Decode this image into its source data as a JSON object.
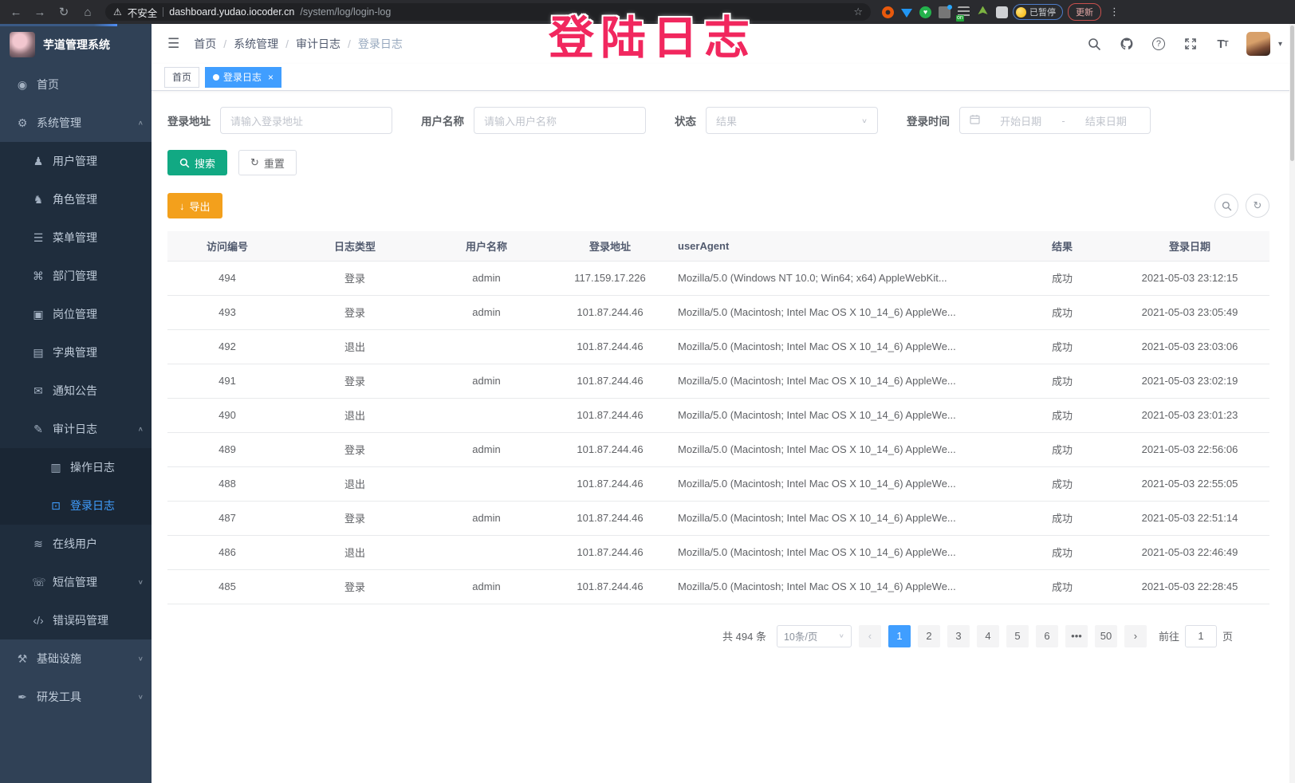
{
  "overlay": {
    "title": "登陆日志",
    "color": "#f1275e"
  },
  "browser": {
    "security_label": "不安全",
    "url_host": "dashboard.yudao.iocoder.cn",
    "url_path": "/system/log/login-log",
    "paused_badge": "已暂停",
    "update_label": "更新"
  },
  "sidebar": {
    "app_title": "芋道管理系统",
    "items": [
      {
        "label": "首页",
        "icon": "dashboard-icon",
        "level": 1,
        "arrow": ""
      },
      {
        "label": "系统管理",
        "icon": "gear-icon",
        "level": 1,
        "arrow": "expanded"
      },
      {
        "label": "用户管理",
        "icon": "user-icon",
        "level": 2,
        "arrow": ""
      },
      {
        "label": "角色管理",
        "icon": "roles-icon",
        "level": 2,
        "arrow": ""
      },
      {
        "label": "菜单管理",
        "icon": "menu-list-icon",
        "level": 2,
        "arrow": ""
      },
      {
        "label": "部门管理",
        "icon": "org-tree-icon",
        "level": 2,
        "arrow": ""
      },
      {
        "label": "岗位管理",
        "icon": "post-icon",
        "level": 2,
        "arrow": ""
      },
      {
        "label": "字典管理",
        "icon": "dict-icon",
        "level": 2,
        "arrow": ""
      },
      {
        "label": "通知公告",
        "icon": "announcement-icon",
        "level": 2,
        "arrow": ""
      },
      {
        "label": "审计日志",
        "icon": "audit-log-icon",
        "level": 2,
        "arrow": "expanded"
      },
      {
        "label": "操作日志",
        "icon": "operation-log-icon",
        "level": 3,
        "arrow": ""
      },
      {
        "label": "登录日志",
        "icon": "login-log-icon",
        "level": 3,
        "arrow": "",
        "active": true
      },
      {
        "label": "在线用户",
        "icon": "online-users-icon",
        "level": 2,
        "arrow": ""
      },
      {
        "label": "短信管理",
        "icon": "sms-icon",
        "level": 2,
        "arrow": "collapsed"
      },
      {
        "label": "错误码管理",
        "icon": "error-code-icon",
        "level": 2,
        "arrow": ""
      },
      {
        "label": "基础设施",
        "icon": "infrastructure-icon",
        "level": 1,
        "arrow": "collapsed"
      },
      {
        "label": "研发工具",
        "icon": "devtools-icon",
        "level": 1,
        "arrow": "collapsed"
      }
    ]
  },
  "header": {
    "breadcrumb": [
      "首页",
      "系统管理",
      "审计日志",
      "登录日志"
    ]
  },
  "tags": {
    "home": "首页",
    "active": "登录日志",
    "close": "×"
  },
  "filters": {
    "address_label": "登录地址",
    "address_placeholder": "请输入登录地址",
    "username_label": "用户名称",
    "username_placeholder": "请输入用户名称",
    "status_label": "状态",
    "status_placeholder": "结果",
    "time_label": "登录时间",
    "start_placeholder": "开始日期",
    "range_separator": "-",
    "end_placeholder": "结束日期",
    "search_label": "搜索",
    "reset_label": "重置"
  },
  "toolbar": {
    "export_label": "导出"
  },
  "table": {
    "columns": [
      "访问编号",
      "日志类型",
      "用户名称",
      "登录地址",
      "userAgent",
      "结果",
      "登录日期"
    ],
    "rows": [
      [
        "494",
        "登录",
        "admin",
        "117.159.17.226",
        "Mozilla/5.0 (Windows NT 10.0; Win64; x64) AppleWebKit...",
        "成功",
        "2021-05-03 23:12:15"
      ],
      [
        "493",
        "登录",
        "admin",
        "101.87.244.46",
        "Mozilla/5.0 (Macintosh; Intel Mac OS X 10_14_6) AppleWe...",
        "成功",
        "2021-05-03 23:05:49"
      ],
      [
        "492",
        "退出",
        "",
        "101.87.244.46",
        "Mozilla/5.0 (Macintosh; Intel Mac OS X 10_14_6) AppleWe...",
        "成功",
        "2021-05-03 23:03:06"
      ],
      [
        "491",
        "登录",
        "admin",
        "101.87.244.46",
        "Mozilla/5.0 (Macintosh; Intel Mac OS X 10_14_6) AppleWe...",
        "成功",
        "2021-05-03 23:02:19"
      ],
      [
        "490",
        "退出",
        "",
        "101.87.244.46",
        "Mozilla/5.0 (Macintosh; Intel Mac OS X 10_14_6) AppleWe...",
        "成功",
        "2021-05-03 23:01:23"
      ],
      [
        "489",
        "登录",
        "admin",
        "101.87.244.46",
        "Mozilla/5.0 (Macintosh; Intel Mac OS X 10_14_6) AppleWe...",
        "成功",
        "2021-05-03 22:56:06"
      ],
      [
        "488",
        "退出",
        "",
        "101.87.244.46",
        "Mozilla/5.0 (Macintosh; Intel Mac OS X 10_14_6) AppleWe...",
        "成功",
        "2021-05-03 22:55:05"
      ],
      [
        "487",
        "登录",
        "admin",
        "101.87.244.46",
        "Mozilla/5.0 (Macintosh; Intel Mac OS X 10_14_6) AppleWe...",
        "成功",
        "2021-05-03 22:51:14"
      ],
      [
        "486",
        "退出",
        "",
        "101.87.244.46",
        "Mozilla/5.0 (Macintosh; Intel Mac OS X 10_14_6) AppleWe...",
        "成功",
        "2021-05-03 22:46:49"
      ],
      [
        "485",
        "登录",
        "admin",
        "101.87.244.46",
        "Mozilla/5.0 (Macintosh; Intel Mac OS X 10_14_6) AppleWe...",
        "成功",
        "2021-05-03 22:28:45"
      ]
    ]
  },
  "pagination": {
    "total_label": "共 494 条",
    "page_size_label": "10条/页",
    "pages": [
      "1",
      "2",
      "3",
      "4",
      "5",
      "6",
      "•••",
      "50"
    ],
    "active_page": "1",
    "goto_label": "前往",
    "goto_value": "1",
    "goto_suffix": "页"
  },
  "colors": {
    "accent": "#409eff",
    "search_button": "#11a983",
    "export_button": "#f3a01c",
    "sidebar_bg": "#304156",
    "submenu_bg": "#1f2d3d",
    "overlay_text": "#f1275e"
  }
}
